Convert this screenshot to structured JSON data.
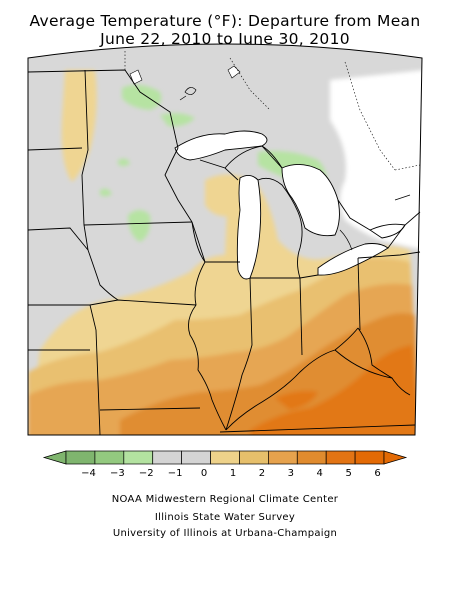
{
  "title": {
    "line1": "Average Temperature (°F): Departure from Mean",
    "line2": "June 22, 2010 to June 30, 2010"
  },
  "legend": {
    "ticks": [
      "−4",
      "−3",
      "−2",
      "−1",
      "0",
      "1",
      "2",
      "3",
      "4",
      "5",
      "6"
    ],
    "colors": [
      "#7fb56e",
      "#93c97f",
      "#b3e2a0",
      "#d4d4d4",
      "#d4d4d4",
      "#eed28a",
      "#e6bf6b",
      "#e6a24d",
      "#e08b2e",
      "#e27414",
      "#e36a05"
    ]
  },
  "colors": {
    "cool": "#b6e3a2",
    "neutral": "#d8d8d8",
    "warm_1": "#efd592",
    "warm_2": "#e9c06f",
    "warm_3": "#e6a653",
    "warm_4": "#e08d33",
    "warm_5": "#e27814",
    "water": "#ffffff"
  },
  "credits": {
    "line1": "NOAA Midwestern Regional Climate Center",
    "line2": "Illinois State Water Survey",
    "line3": "University of Illinois at Urbana-Champaign"
  }
}
